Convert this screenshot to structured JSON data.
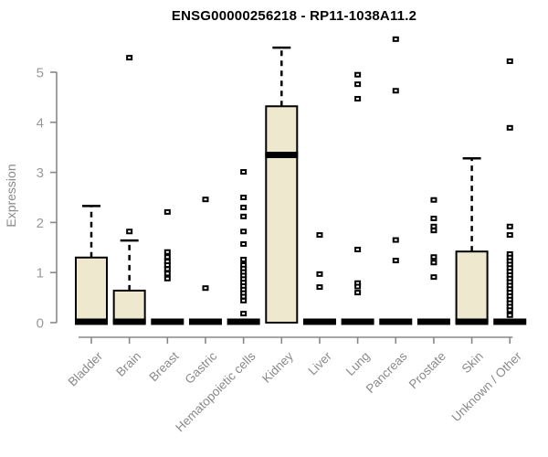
{
  "chart_data": {
    "type": "boxplot",
    "title": "ENSG00000256218 - RP11-1038A11.2",
    "xlabel": "",
    "ylabel": "Expression",
    "ylim": [
      0,
      5.8
    ],
    "yticks": [
      0,
      1,
      2,
      3,
      4,
      5
    ],
    "grid": false,
    "legend_position": "none",
    "categories": [
      "Bladder",
      "Brain",
      "Breast",
      "Gastric",
      "Hematopoietic cells",
      "Kidney",
      "Liver",
      "Lung",
      "Pancreas",
      "Prostate",
      "Skin",
      "Unknown / Other"
    ],
    "boxes": [
      {
        "category": "Bladder",
        "q1": 0,
        "median": 0,
        "q3": 1.3,
        "whisker_low": 0,
        "whisker_high": 2.33,
        "outliers": []
      },
      {
        "category": "Brain",
        "q1": 0,
        "median": 0,
        "q3": 0.64,
        "whisker_low": 0,
        "whisker_high": 1.64,
        "outliers": [
          1.82,
          5.29
        ]
      },
      {
        "category": "Breast",
        "q1": 0,
        "median": 0,
        "q3": 0,
        "whisker_low": 0,
        "whisker_high": 0,
        "outliers": [
          2.21,
          1.41,
          1.31,
          1.22,
          1.15,
          1.07,
          0.98,
          0.88
        ]
      },
      {
        "category": "Gastric",
        "q1": 0,
        "median": 0,
        "q3": 0,
        "whisker_low": 0,
        "whisker_high": 0,
        "outliers": [
          2.46,
          0.69
        ]
      },
      {
        "category": "Hematopoietic cells",
        "q1": 0,
        "median": 0,
        "q3": 0,
        "whisker_low": 0,
        "whisker_high": 0,
        "outliers": [
          3.01,
          2.5,
          2.3,
          2.12,
          1.82,
          1.57,
          1.26,
          1.15,
          1.08,
          1.01,
          0.94,
          0.87,
          0.8,
          0.73,
          0.66,
          0.59,
          0.52,
          0.44,
          0.18
        ]
      },
      {
        "category": "Kidney",
        "q1": 0,
        "median": 3.33,
        "q3": 4.32,
        "whisker_low": 0,
        "whisker_high": 5.49,
        "outliers": []
      },
      {
        "category": "Liver",
        "q1": 0,
        "median": 0,
        "q3": 0,
        "whisker_low": 0,
        "whisker_high": 0,
        "outliers": [
          1.75,
          0.97,
          0.71
        ]
      },
      {
        "category": "Lung",
        "q1": 0,
        "median": 0,
        "q3": 0,
        "whisker_low": 0,
        "whisker_high": 0,
        "outliers": [
          4.95,
          4.76,
          4.47,
          1.46,
          0.79,
          0.72,
          0.6
        ]
      },
      {
        "category": "Pancreas",
        "q1": 0,
        "median": 0,
        "q3": 0,
        "whisker_low": 0,
        "whisker_high": 0,
        "outliers": [
          5.66,
          4.63,
          1.65,
          1.24
        ]
      },
      {
        "category": "Prostate",
        "q1": 0,
        "median": 0,
        "q3": 0,
        "whisker_low": 0,
        "whisker_high": 0,
        "outliers": [
          2.45,
          2.08,
          1.92,
          1.84,
          1.31,
          1.2,
          0.91
        ]
      },
      {
        "category": "Skin",
        "q1": 0,
        "median": 0,
        "q3": 1.42,
        "whisker_low": 0,
        "whisker_high": 3.28,
        "outliers": []
      },
      {
        "category": "Unknown / Other",
        "q1": 0,
        "median": 0,
        "q3": 0,
        "whisker_low": 0,
        "whisker_high": 0,
        "outliers": [
          5.22,
          3.89,
          1.92,
          1.75,
          1.37,
          1.3,
          1.23,
          1.16,
          1.09,
          1.02,
          0.95,
          0.88,
          0.81,
          0.74,
          0.67,
          0.6,
          0.53,
          0.46,
          0.39,
          0.32,
          0.25,
          0.15
        ]
      }
    ],
    "colors": {
      "box_fill": "#ede8ce",
      "box_border": "#000000",
      "median": "#000000",
      "whisker": "#000000",
      "outlier": "#000000",
      "axis": "#888888",
      "tick_label": "#999999",
      "axis_label": "#8a8a8a",
      "title": "#000000",
      "background": "#ffffff"
    }
  }
}
